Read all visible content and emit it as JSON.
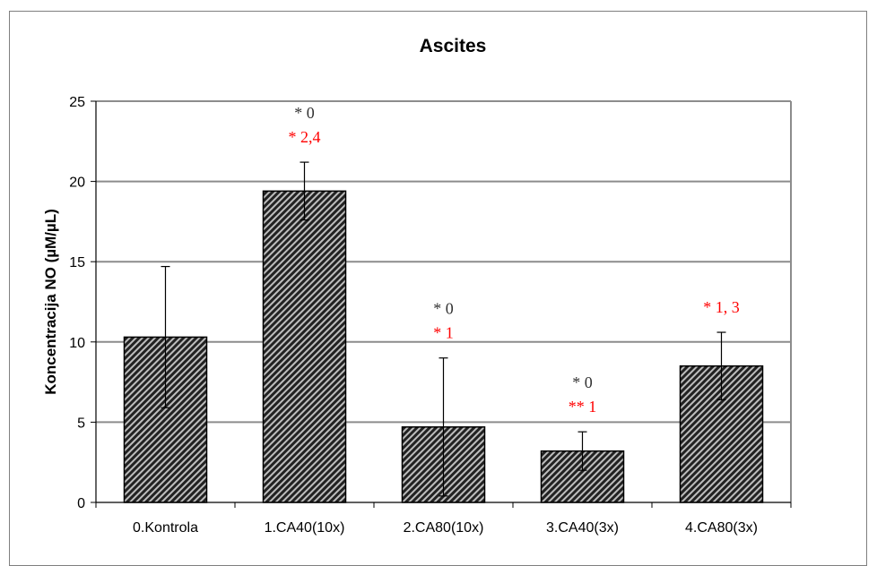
{
  "chart_data": {
    "type": "bar",
    "title": "Ascites",
    "ylabel": "Koncentracija NO (µM/µL)",
    "xlabel": "",
    "ylim": [
      0,
      25
    ],
    "yticks": [
      0,
      5,
      10,
      15,
      20,
      25
    ],
    "grid": true,
    "categories": [
      "0.Kontrola",
      "1.CA40(10x)",
      "2.CA80(10x)",
      "3.CA40(3x)",
      "4.CA80(3x)"
    ],
    "values": [
      10.3,
      19.4,
      4.7,
      3.2,
      8.5
    ],
    "errors": [
      4.4,
      1.8,
      4.3,
      1.2,
      2.1
    ],
    "annotations": [
      [],
      [
        {
          "text": "* 0",
          "color": "#333333"
        },
        {
          "text": "* 2,4",
          "color": "#ff0000"
        }
      ],
      [
        {
          "text": "* 0",
          "color": "#333333"
        },
        {
          "text": "* 1",
          "color": "#ff0000"
        }
      ],
      [
        {
          "text": "* 0",
          "color": "#333333"
        },
        {
          "text": "** 1",
          "color": "#ff0000"
        }
      ],
      [
        {
          "text": "* 1, 3",
          "color": "#ff0000"
        }
      ]
    ],
    "bar_fill": "hatched dark gray",
    "colors": {
      "bar_stroke": "#000000",
      "grid": "#8c8c8c",
      "hatch_dark": "#222222",
      "hatch_light": "#bdbdbd"
    }
  }
}
